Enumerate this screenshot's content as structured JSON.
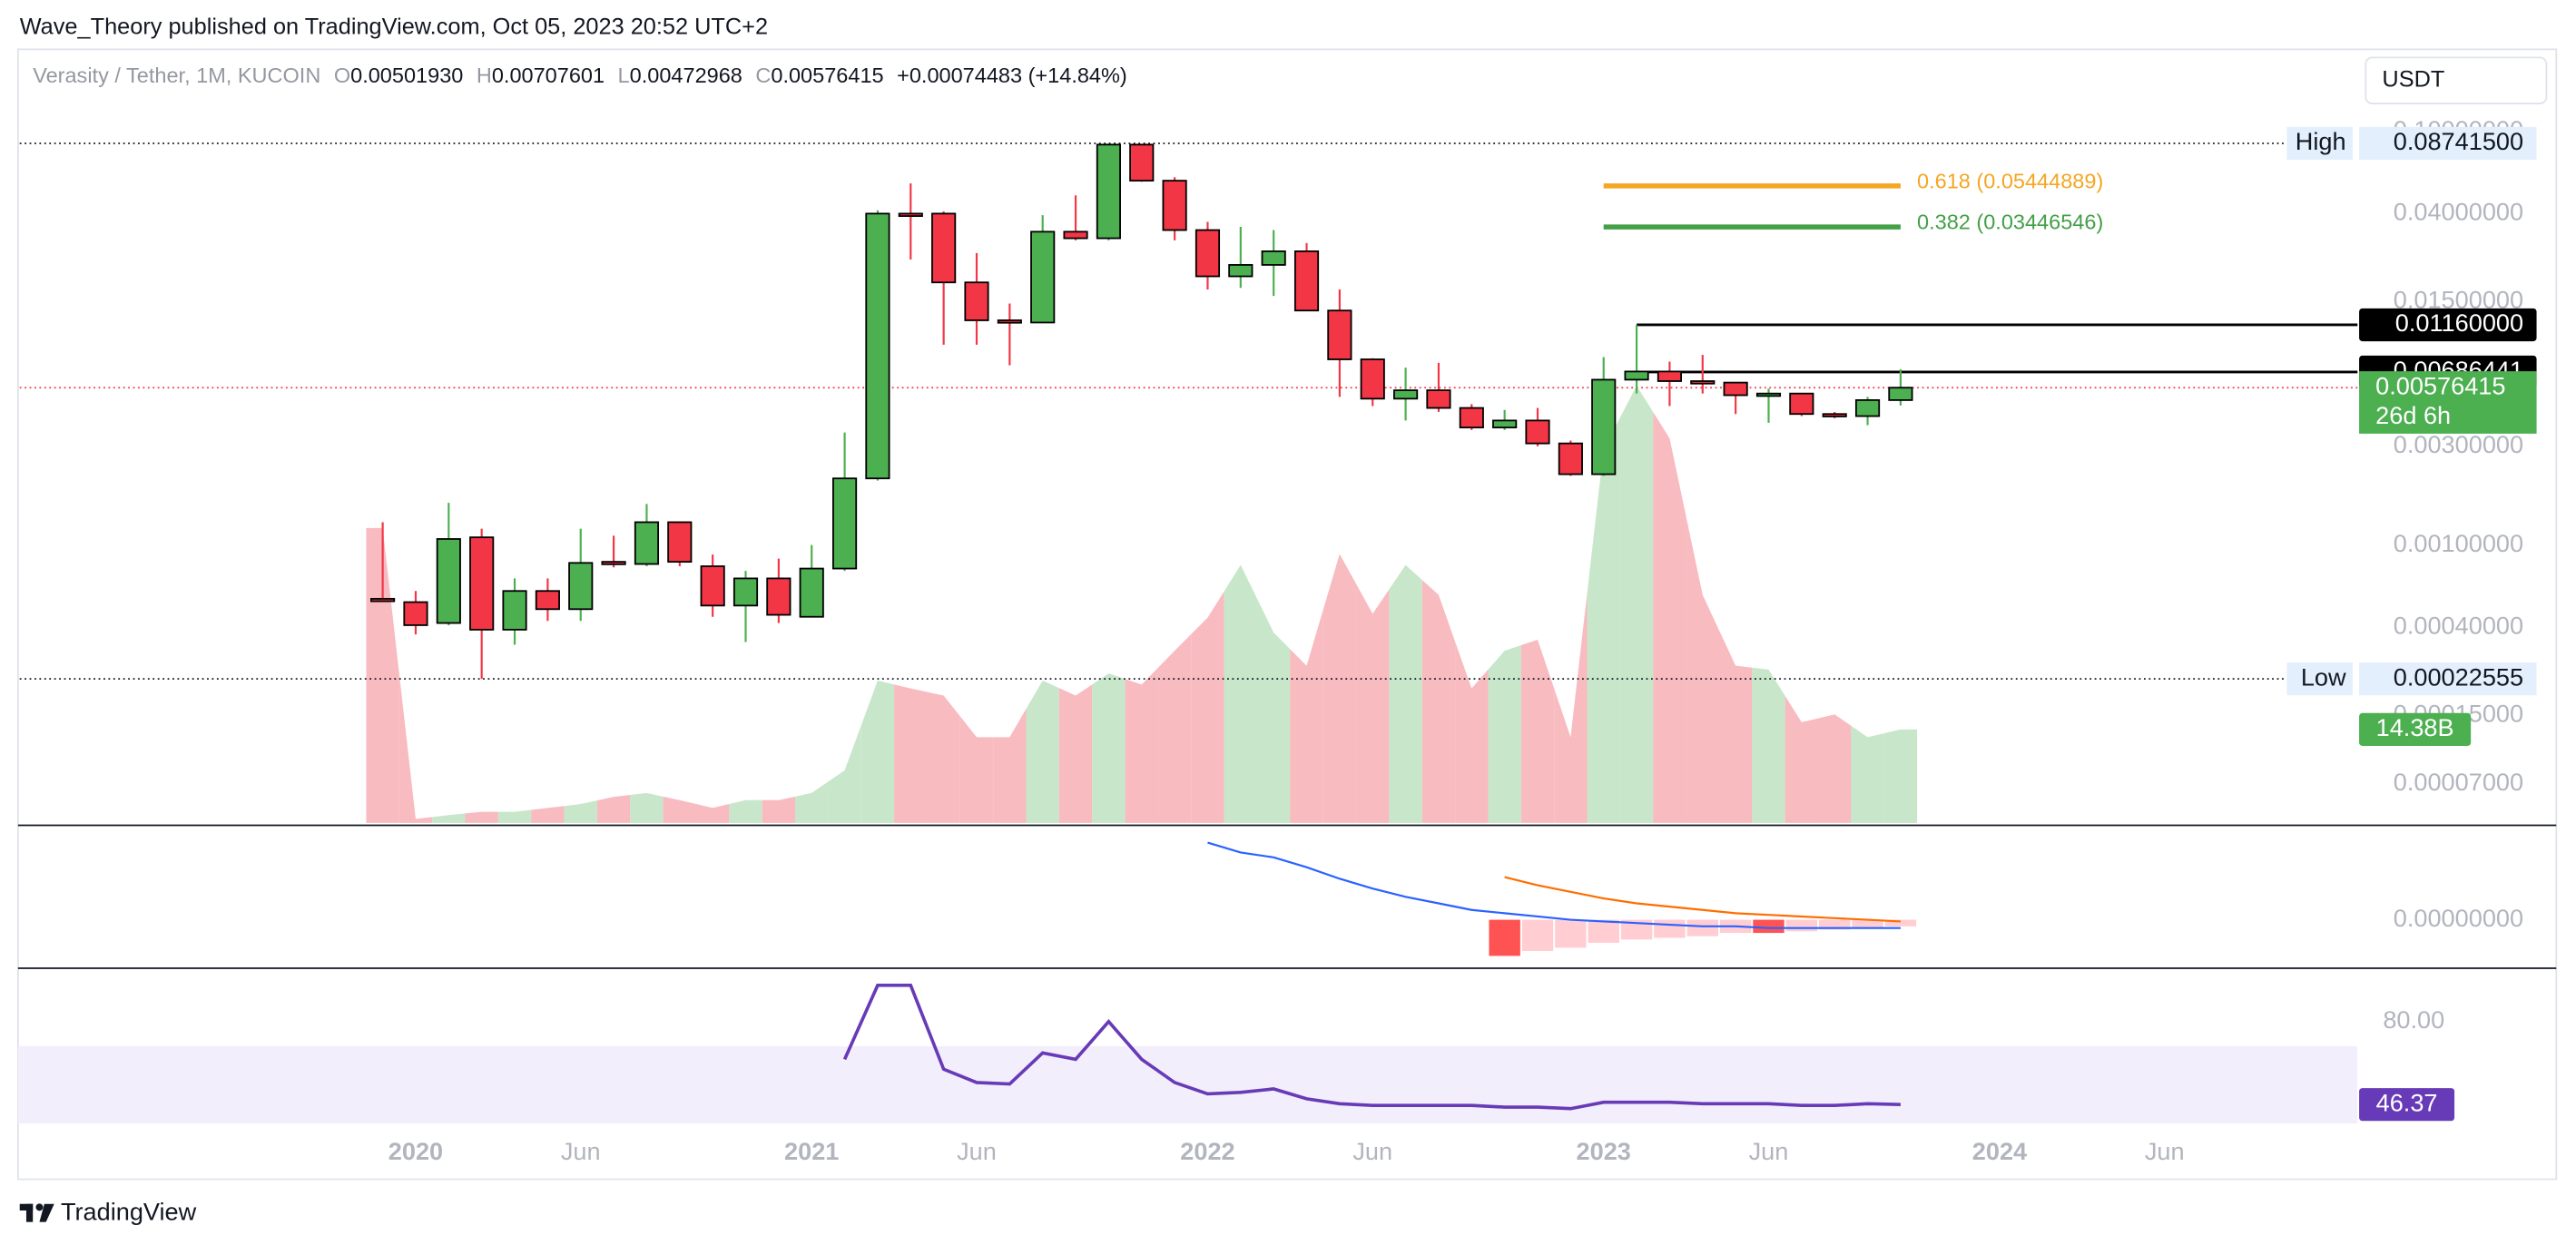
{
  "header": {
    "publisher": "Wave_Theory published on TradingView.com, Oct 05, 2023 20:52 UTC+2",
    "symbol": "Verasity / Tether, 1M, KUCOIN",
    "ohlc": [
      {
        "key": "O",
        "value": "0.00501930"
      },
      {
        "key": "H",
        "value": "0.00707601"
      },
      {
        "key": "L",
        "value": "0.00472968"
      },
      {
        "key": "C",
        "value": "0.00576415"
      }
    ],
    "change": "+0.00074483 (+14.84%)",
    "currency": "USDT"
  },
  "footer": {
    "brand": "TradingView"
  },
  "chart_data": {
    "type": "candlestick",
    "x": [
      "2019-12",
      "2020-01",
      "2020-02",
      "2020-03",
      "2020-04",
      "2020-05",
      "2020-06",
      "2020-07",
      "2020-08",
      "2020-09",
      "2020-10",
      "2020-11",
      "2020-12",
      "2021-01",
      "2021-02",
      "2021-03",
      "2021-04",
      "2021-05",
      "2021-06",
      "2021-07",
      "2021-08",
      "2021-09",
      "2021-10",
      "2021-11",
      "2021-12",
      "2022-01",
      "2022-02",
      "2022-03",
      "2022-04",
      "2022-05",
      "2022-06",
      "2022-07",
      "2022-08",
      "2022-09",
      "2022-10",
      "2022-11",
      "2022-12",
      "2023-01",
      "2023-02",
      "2023-03",
      "2023-04",
      "2023-05",
      "2023-06",
      "2023-07",
      "2023-08",
      "2023-09",
      "2023-10"
    ],
    "open": [
      0.00055,
      0.00053,
      0.00042,
      0.00109,
      0.00039,
      0.0006,
      0.00049,
      0.00083,
      0.00081,
      0.00129,
      0.00079,
      0.00051,
      0.00069,
      0.00045,
      0.00077,
      0.0021,
      0.04,
      0.04,
      0.0186,
      0.0122,
      0.0119,
      0.0327,
      0.0304,
      0.0862,
      0.0577,
      0.0333,
      0.0199,
      0.0226,
      0.0263,
      0.0136,
      0.0079,
      0.0051,
      0.0056,
      0.0046,
      0.0037,
      0.004,
      0.0031,
      0.0022,
      0.0063,
      0.0069,
      0.0062,
      0.0061,
      0.0053,
      0.0054,
      0.0043,
      0.0042,
      0.0050193
    ],
    "high": [
      0.00129,
      0.0006,
      0.0016,
      0.0012,
      0.00069,
      0.00069,
      0.0012,
      0.00111,
      0.00158,
      0.0013,
      0.0009,
      0.00075,
      0.00086,
      0.001,
      0.0035,
      0.0415,
      0.056,
      0.041,
      0.0258,
      0.0147,
      0.0393,
      0.049,
      0.087415,
      0.0862,
      0.06,
      0.0365,
      0.0345,
      0.0333,
      0.0288,
      0.0172,
      0.008,
      0.0072,
      0.0076,
      0.0048,
      0.0045,
      0.0046,
      0.0032,
      0.0081,
      0.0116,
      0.0077,
      0.0083,
      0.0061,
      0.0057,
      0.0054,
      0.0044,
      0.0052,
      0.00707601
    ],
    "low": [
      0.00053,
      0.00037,
      0.00041,
      0.00022555,
      0.00033,
      0.00043,
      0.00043,
      0.00078,
      0.00079,
      0.00079,
      0.00045,
      0.00034,
      0.00042,
      0.00045,
      0.00075,
      0.00205,
      0.024,
      0.0093,
      0.0093,
      0.0074,
      0.0119,
      0.0297,
      0.0297,
      0.057,
      0.0297,
      0.0172,
      0.0175,
      0.016,
      0.0136,
      0.0052,
      0.0047,
      0.004,
      0.0044,
      0.0036,
      0.0036,
      0.003,
      0.00216,
      0.00216,
      0.0054,
      0.0047,
      0.0054,
      0.0043,
      0.0039,
      0.0042,
      0.0041,
      0.0038,
      0.00472968
    ],
    "close": [
      0.00054,
      0.00041,
      0.00107,
      0.00039,
      0.0006,
      0.00049,
      0.00082,
      0.00081,
      0.00129,
      0.00083,
      0.00051,
      0.00069,
      0.00046,
      0.00077,
      0.0021,
      0.04,
      0.0395,
      0.0186,
      0.0122,
      0.0119,
      0.0327,
      0.0304,
      0.0862,
      0.0577,
      0.0333,
      0.0199,
      0.0226,
      0.0263,
      0.0136,
      0.0079,
      0.0051,
      0.0056,
      0.0046,
      0.0037,
      0.004,
      0.0031,
      0.0022,
      0.0063,
      0.0069,
      0.0062,
      0.0061,
      0.0053,
      0.0054,
      0.0043,
      0.0042,
      0.00502,
      0.00576415
    ],
    "up_color": "#4caf50",
    "down_color": "#f23645",
    "xlim": [
      "2019-01",
      "2024-11"
    ],
    "xticks": [
      {
        "value": "2020-01",
        "label": "2020"
      },
      {
        "value": "2020-06",
        "label": "Jun"
      },
      {
        "value": "2021-01",
        "label": "2021"
      },
      {
        "value": "2021-06",
        "label": "Jun"
      },
      {
        "value": "2022-01",
        "label": "2022"
      },
      {
        "value": "2022-06",
        "label": "Jun"
      },
      {
        "value": "2023-01",
        "label": "2023"
      },
      {
        "value": "2023-06",
        "label": "Jun"
      },
      {
        "value": "2024-01",
        "label": "2024"
      },
      {
        "value": "2024-06",
        "label": "Jun"
      }
    ],
    "log_scale": true,
    "ylim": [
      4.46e-05,
      0.249
    ],
    "yticks": [
      {
        "value": 0.1,
        "label": "0.10000000"
      },
      {
        "value": 0.04,
        "label": "0.04000000"
      },
      {
        "value": 0.015,
        "label": "0.01500000"
      },
      {
        "value": 0.003,
        "label": "0.00300000"
      },
      {
        "value": 0.001,
        "label": "0.00100000"
      },
      {
        "value": 0.0004,
        "label": "0.00040000"
      },
      {
        "value": 0.00015,
        "label": "0.00015000"
      },
      {
        "value": 7e-05,
        "label": "0.00007000"
      }
    ],
    "high_marker": {
      "label": "High",
      "value": 0.087415,
      "value_label": "0.08741500"
    },
    "low_marker": {
      "label": "Low",
      "value": 0.00022555
    },
    "countdown": "26d 6h",
    "levels": [
      {
        "value": 0.0116,
        "label": "0.01160000",
        "start": "2023-02"
      },
      {
        "value": 0.00686441,
        "start": "2023-02"
      }
    ],
    "fib": [
      {
        "value": 0.05444889,
        "label": "0.618 (0.05444889)",
        "color": "#f5a623",
        "start": "2023-01",
        "end": "2023-10"
      },
      {
        "value": 0.03446546,
        "label": "0.382 (0.03446546)",
        "color": "#43a047",
        "start": "2023-01",
        "end": "2023-10"
      }
    ],
    "volume": {
      "values": [
        45.4,
        0.6,
        1.2,
        1.7,
        1.7,
        2.3,
        2.9,
        4.0,
        4.6,
        3.5,
        2.3,
        3.5,
        3.5,
        4.6,
        8.1,
        21.9,
        20.7,
        19.6,
        13.2,
        13.2,
        21.9,
        19.6,
        23.0,
        21.3,
        26.5,
        31.6,
        39.7,
        29.3,
        24.2,
        41.4,
        32.2,
        39.7,
        35.1,
        20.7,
        26.5,
        28.2,
        13.2,
        57.5,
        67.3,
        59.2,
        35.1,
        24.2,
        23.6,
        15.5,
        16.7,
        13.2,
        14.38
      ],
      "last_label": "14.38B",
      "ylim": [
        0,
        200
      ],
      "up_color": "#c8e6c9",
      "down_color": "#f8bbc0"
    },
    "macd": {
      "ylim": [
        -0.0029,
        0.0057
      ],
      "yticks": [
        {
          "value": 0,
          "label": "0.00000000"
        }
      ],
      "series": [
        {
          "color": "#2962ff",
          "values": [
            null,
            null,
            null,
            null,
            null,
            null,
            null,
            null,
            null,
            null,
            null,
            null,
            null,
            null,
            null,
            null,
            null,
            null,
            null,
            null,
            null,
            null,
            null,
            null,
            null,
            0.0047,
            0.0041,
            0.0038,
            0.0032,
            0.0025,
            0.0019,
            0.0014,
            0.001,
            0.0006,
            0.0004,
            0.0002,
            0,
            -0.0001,
            -0.0002,
            -0.0003,
            -0.0004,
            -0.0004,
            -0.0005,
            -0.0005,
            -0.0005,
            -0.0005,
            -0.0005
          ]
        },
        {
          "color": "#ff6d00",
          "values": [
            null,
            null,
            null,
            null,
            null,
            null,
            null,
            null,
            null,
            null,
            null,
            null,
            null,
            null,
            null,
            null,
            null,
            null,
            null,
            null,
            null,
            null,
            null,
            null,
            null,
            null,
            null,
            null,
            null,
            null,
            null,
            null,
            null,
            null,
            0.0026,
            0.0021,
            0.0017,
            0.0013,
            0.001,
            0.0008,
            0.0006,
            0.0004,
            0.0003,
            0.0002,
            0.0001,
            0,
            -0.0001
          ]
        }
      ],
      "histogram": [
        null,
        null,
        null,
        null,
        null,
        null,
        null,
        null,
        null,
        null,
        null,
        null,
        null,
        null,
        null,
        null,
        null,
        null,
        null,
        null,
        null,
        null,
        null,
        null,
        null,
        null,
        null,
        null,
        null,
        null,
        null,
        null,
        null,
        null,
        -0.0022,
        -0.0019,
        -0.0017,
        -0.0014,
        -0.0012,
        -0.0011,
        -0.001,
        -0.0008,
        -0.0008,
        -0.0007,
        -0.0006,
        -0.0005,
        -0.0004
      ],
      "hist_colors": [
        "#ff5252",
        "#ffcdd2"
      ]
    },
    "rsi": {
      "ylim": [
        38.7,
        101.3
      ],
      "yticks": [
        {
          "value": 80,
          "label": "80.00"
        }
      ],
      "band": [
        30,
        70
      ],
      "band_color": "#f3eefb",
      "color": "#673ab7",
      "values": [
        null,
        null,
        null,
        null,
        null,
        null,
        null,
        null,
        null,
        null,
        null,
        null,
        null,
        null,
        64.7,
        94.7,
        94.7,
        60.7,
        55.3,
        54.7,
        67.3,
        64.7,
        80,
        64.7,
        55.3,
        50.7,
        51.3,
        52.7,
        48.7,
        46.7,
        46,
        46,
        46,
        46,
        45.3,
        45.3,
        44.7,
        47.3,
        47.3,
        47.3,
        46.7,
        46.7,
        46.7,
        46,
        46,
        46.7,
        46.37
      ]
    }
  }
}
